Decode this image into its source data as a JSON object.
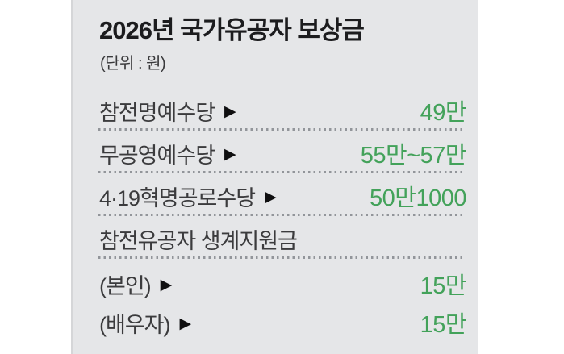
{
  "panel": {
    "title": {
      "prefix": "2026년 ",
      "emphasis": "국가유공자",
      "suffix": " 보상금"
    },
    "unit_note": "(단위 : 원)",
    "arrow_icon": "▶",
    "rows": [
      {
        "label": "참전명예수당",
        "arrow": true,
        "value": "49만"
      },
      {
        "label": "무공영예수당",
        "arrow": true,
        "value": "55만~57만"
      },
      {
        "label": "4·19혁명공로수당",
        "arrow": true,
        "value": "50만1000"
      },
      {
        "label": "참전유공자 생계지원금",
        "arrow": false,
        "value": ""
      },
      {
        "label": "(본인)",
        "arrow": true,
        "value": "15만"
      },
      {
        "label": "(배우자)",
        "arrow": true,
        "value": "15만"
      }
    ],
    "colors": {
      "panel_bg": "#e5e6e8",
      "title_text": "#1c1c1e",
      "label_text": "#3b3b3d",
      "value_green": "#43a25a",
      "dot_gray": "#92959a"
    }
  },
  "chart_data": {
    "type": "table",
    "title": "2026년 국가유공자 보상금",
    "unit": "원",
    "rows": [
      {
        "category": "참전명예수당",
        "value": "49만",
        "value_won": 490000
      },
      {
        "category": "무공영예수당",
        "value": "55만~57만",
        "value_won_min": 550000,
        "value_won_max": 570000
      },
      {
        "category": "4·19혁명공로수당",
        "value": "50만1000",
        "value_won": 501000
      },
      {
        "category": "참전유공자 생계지원금",
        "value": null,
        "group_header": true
      },
      {
        "category": "참전유공자 생계지원금 (본인)",
        "value": "15만",
        "value_won": 150000
      },
      {
        "category": "참전유공자 생계지원금 (배우자)",
        "value": "15만",
        "value_won": 150000
      }
    ],
    "legend": "none",
    "grid": "dotted row separators"
  }
}
